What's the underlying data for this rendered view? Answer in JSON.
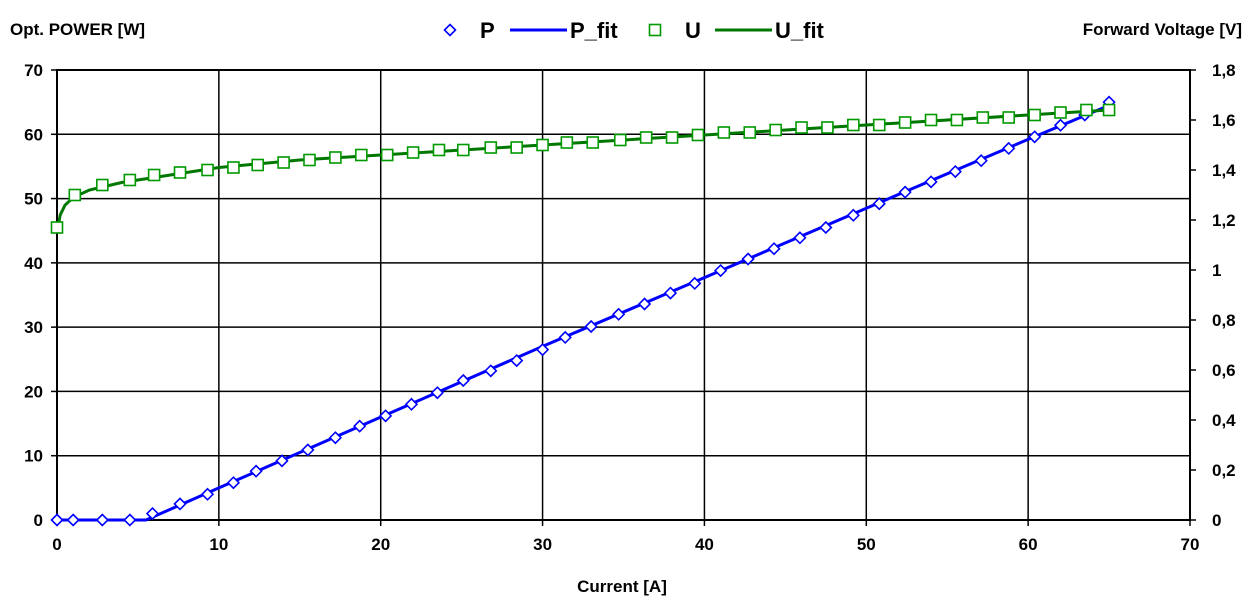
{
  "chart_data": {
    "type": "line",
    "title": "",
    "xlabel": "Current [A]",
    "ylabel": "Opt. POWER [W]",
    "y2label": "Forward Voltage [V]",
    "xlim": [
      0,
      70
    ],
    "ylim": [
      0,
      70
    ],
    "y2lim": [
      0,
      1.8
    ],
    "x_ticks": [
      0,
      10,
      20,
      30,
      40,
      50,
      60,
      70
    ],
    "y_ticks": [
      0,
      10,
      20,
      30,
      40,
      50,
      60,
      70
    ],
    "y2_ticks": [
      "0",
      "0,2",
      "0,4",
      "0,6",
      "0,8",
      "1",
      "1,2",
      "1,4",
      "1,6",
      "1,8"
    ],
    "grid": true,
    "legend_position": "top",
    "series": [
      {
        "name": "P",
        "kind": "markers",
        "marker": "diamond",
        "color": "#0000ff",
        "axis": "left",
        "x": [
          0,
          1,
          2.8,
          4.5,
          5.9,
          7.6,
          9.3,
          10.9,
          12.3,
          13.9,
          15.5,
          17.2,
          18.7,
          20.3,
          21.9,
          23.5,
          25.1,
          26.8,
          28.4,
          30.0,
          31.4,
          33.0,
          34.7,
          36.3,
          37.9,
          39.4,
          41.0,
          42.7,
          44.3,
          45.9,
          47.5,
          49.2,
          50.8,
          52.4,
          54.0,
          55.5,
          57.1,
          58.8,
          60.4,
          62.0,
          63.5,
          65.0
        ],
        "y": [
          0,
          0,
          0,
          0,
          1,
          2.5,
          4,
          5.8,
          7.6,
          9.2,
          10.9,
          12.8,
          14.6,
          16.2,
          18,
          19.8,
          21.7,
          23.2,
          24.8,
          26.5,
          28.4,
          30.1,
          32,
          33.6,
          35.3,
          36.8,
          38.8,
          40.6,
          42.2,
          43.9,
          45.5,
          47.4,
          49.2,
          51,
          52.6,
          54.2,
          55.9,
          57.8,
          59.6,
          61.4,
          63,
          65
        ]
      },
      {
        "name": "P_fit",
        "kind": "line",
        "color": "#0000ff",
        "axis": "left",
        "x": [
          0,
          5.5,
          10,
          20,
          30,
          40,
          50,
          60,
          65
        ],
        "y": [
          0,
          0,
          5,
          16,
          27,
          37.7,
          48.5,
          59.2,
          64.5
        ]
      },
      {
        "name": "U",
        "kind": "markers",
        "marker": "square",
        "color": "#009900",
        "axis": "right",
        "x": [
          0,
          1.1,
          2.8,
          4.5,
          6.0,
          7.6,
          9.3,
          10.9,
          12.4,
          14.0,
          15.6,
          17.2,
          18.8,
          20.4,
          22.0,
          23.6,
          25.1,
          26.8,
          28.4,
          30.0,
          31.5,
          33.1,
          34.8,
          36.4,
          38.0,
          39.6,
          41.2,
          42.8,
          44.4,
          46.0,
          47.6,
          49.2,
          50.8,
          52.4,
          54.0,
          55.6,
          57.2,
          58.8,
          60.4,
          62.0,
          63.6,
          65.0
        ],
        "y": [
          1.17,
          1.3,
          1.34,
          1.36,
          1.38,
          1.39,
          1.4,
          1.41,
          1.42,
          1.43,
          1.44,
          1.45,
          1.46,
          1.46,
          1.47,
          1.48,
          1.48,
          1.49,
          1.49,
          1.5,
          1.51,
          1.51,
          1.52,
          1.53,
          1.53,
          1.54,
          1.55,
          1.55,
          1.56,
          1.57,
          1.57,
          1.58,
          1.58,
          1.59,
          1.6,
          1.6,
          1.61,
          1.61,
          1.62,
          1.63,
          1.64,
          1.64
        ]
      },
      {
        "name": "U_fit",
        "kind": "line",
        "color": "#007700",
        "axis": "right",
        "x": [
          0,
          0.2,
          0.5,
          1,
          2,
          4,
          6,
          10,
          15,
          20,
          30,
          40,
          50,
          60,
          65
        ],
        "y": [
          1.15,
          1.22,
          1.26,
          1.29,
          1.32,
          1.35,
          1.37,
          1.41,
          1.44,
          1.46,
          1.5,
          1.54,
          1.58,
          1.62,
          1.64
        ]
      }
    ]
  }
}
